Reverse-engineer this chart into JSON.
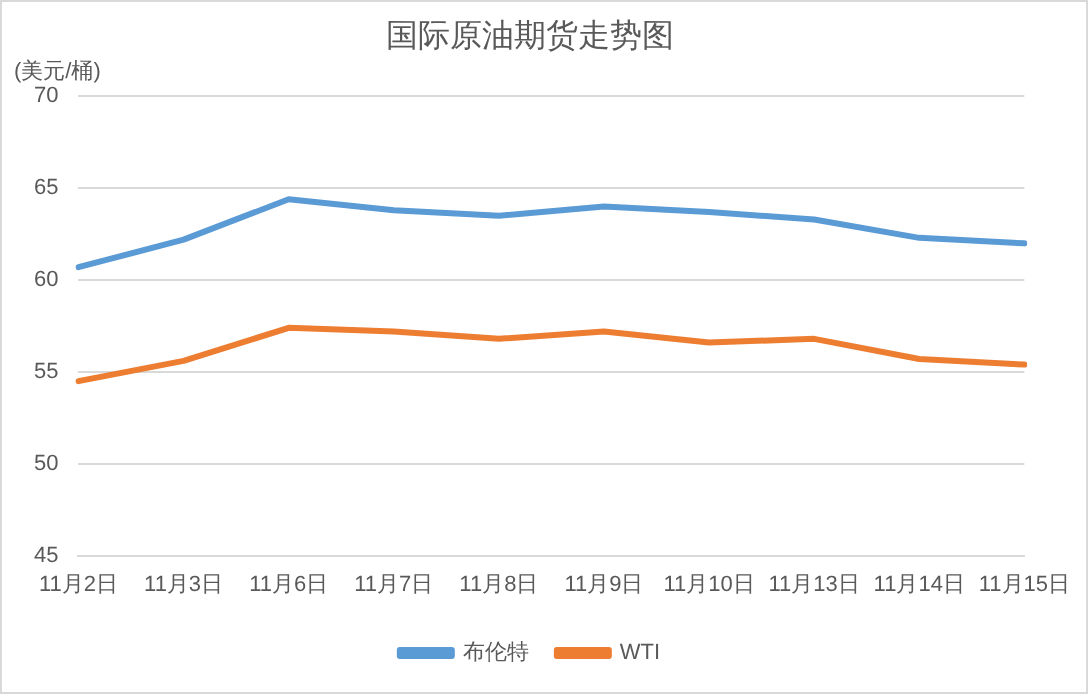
{
  "chart_data": {
    "type": "line",
    "title": "国际原油期货走势图",
    "ylabel": "(美元/桶)",
    "categories": [
      "11月2日",
      "11月3日",
      "11月6日",
      "11月7日",
      "11月8日",
      "11月9日",
      "11月10日",
      "11月13日",
      "11月14日",
      "11月15日"
    ],
    "series": [
      {
        "name": "布伦特",
        "color": "#5b9bd5",
        "values": [
          60.7,
          62.2,
          64.4,
          63.8,
          63.5,
          64.0,
          63.7,
          63.3,
          62.3,
          62.0
        ]
      },
      {
        "name": "WTI",
        "color": "#ed7d31",
        "values": [
          54.5,
          55.6,
          57.4,
          57.2,
          56.8,
          57.2,
          56.6,
          56.8,
          55.7,
          55.4
        ]
      }
    ],
    "ylim": [
      45,
      70
    ],
    "yticks": [
      45,
      50,
      55,
      60,
      65,
      70
    ],
    "grid": "y",
    "legend": "bottom",
    "marker": "none",
    "line_style": "solid"
  }
}
